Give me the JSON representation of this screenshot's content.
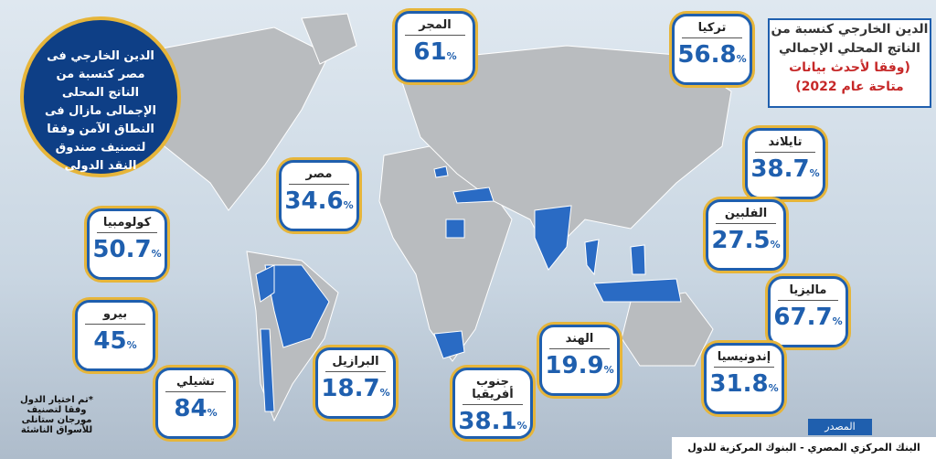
{
  "header": {
    "title": "الدين الخارجي كنسبة من الناتج المحلي الإجمالي",
    "subtitle": "(وفقا لأحدث بيانات متاحة عام 2022)"
  },
  "highlight": "الدين الخارجي فى مصر كنسبة من الناتج المحلى الإجمالى مازال فى النطاق الآمن وفقا لتصنيف صندوق النقد الدولى",
  "unit": "%",
  "countries": [
    {
      "name": "المجر",
      "value": 61
    },
    {
      "name": "تركيا",
      "value": 56.8
    },
    {
      "name": "تايلاند",
      "value": 38.7
    },
    {
      "name": "الفلبين",
      "value": 27.5
    },
    {
      "name": "ماليزيا",
      "value": 67.7
    },
    {
      "name": "إندونيسيا",
      "value": 31.8
    },
    {
      "name": "الهند",
      "value": 19.9
    },
    {
      "name": "جنوب أفريقيا",
      "value": 38.1
    },
    {
      "name": "البرازيل",
      "value": 18.7
    },
    {
      "name": "تشيلي",
      "value": 84
    },
    {
      "name": "بيرو",
      "value": 45
    },
    {
      "name": "كولومبيا",
      "value": 50.7
    },
    {
      "name": "مصر",
      "value": 34.6
    }
  ],
  "note": "*تم اختيار الدول وفقا لتصنيف مورجان ستانلى للأسواق الناشئة",
  "source": {
    "label": "المصدر",
    "text": "البنك المركزي المصري - البنوك المركزية للدول"
  }
}
